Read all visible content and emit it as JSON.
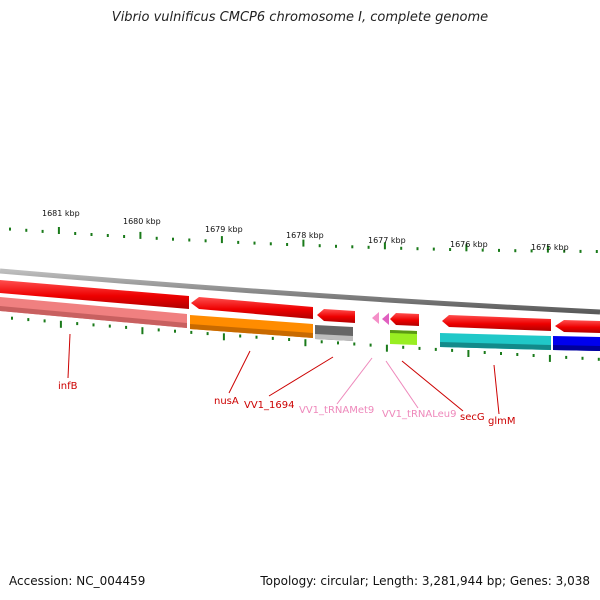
{
  "title": "Vibrio vulnificus CMCP6 chromosome I, complete genome",
  "accession": "Accession: NC_004459",
  "summary": "Topology: circular; Length: 3,281,944 bp; Genes: 3,038",
  "scale_ticks": [
    "1681 kbp",
    "1680 kbp",
    "1679 kbp",
    "1678 kbp",
    "1677 kbp",
    "1676 kbp",
    "1675 kbp"
  ],
  "gene_labels": [
    {
      "name": "infB",
      "color": "#cc0000"
    },
    {
      "name": "nusA",
      "color": "#cc0000"
    },
    {
      "name": "VV1_1694",
      "color": "#cc0000"
    },
    {
      "name": "VV1_tRNAMet9",
      "color": "#ee88bb"
    },
    {
      "name": "VV1_tRNALeu9",
      "color": "#ee88bb"
    },
    {
      "name": "secG",
      "color": "#cc0000"
    },
    {
      "name": "glmM",
      "color": "#cc0000"
    }
  ],
  "colors": {
    "cds": "#ff0000",
    "trna": "#f48fc8",
    "backbone": "#808080",
    "tick": "#1a7a1a",
    "infB": "#f08080",
    "nusA": "#ff8c00",
    "VV1_1694": "#666666",
    "secG": "#99ee22",
    "glmM_left": "#20c8c8",
    "glmM_right": "#0000ee"
  }
}
